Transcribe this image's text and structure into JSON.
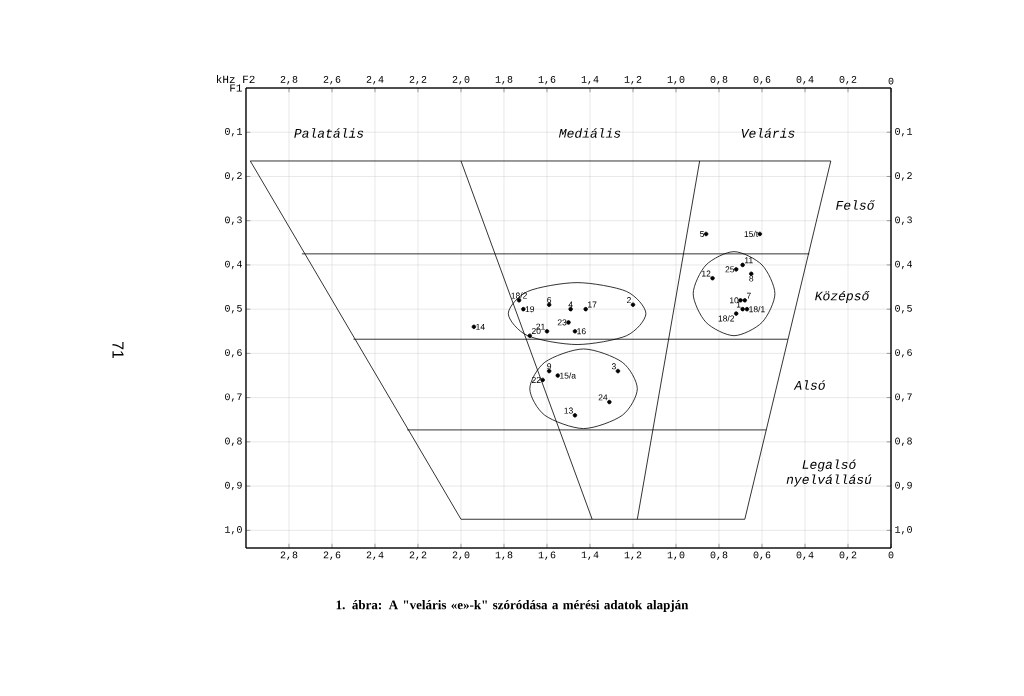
{
  "chart_data": {
    "type": "scatter",
    "xlabel": "kHz F2",
    "ylabel": "F1",
    "xlim": [
      3.0,
      0
    ],
    "ylim": [
      1.04,
      0
    ],
    "x2lim": [
      3.0,
      0
    ],
    "y2lim": [
      1.04,
      0
    ],
    "xticks": [
      {
        "value": 2.8,
        "label": "2,8"
      },
      {
        "value": 2.6,
        "label": "2,6"
      },
      {
        "value": 2.4,
        "label": "2,4"
      },
      {
        "value": 2.2,
        "label": "2,2"
      },
      {
        "value": 2.0,
        "label": "2,0"
      },
      {
        "value": 1.8,
        "label": "1,8"
      },
      {
        "value": 1.6,
        "label": "1,6"
      },
      {
        "value": 1.4,
        "label": "1,4"
      },
      {
        "value": 1.2,
        "label": "1,2"
      },
      {
        "value": 1.0,
        "label": "1,0"
      },
      {
        "value": 0.8,
        "label": "0,8"
      },
      {
        "value": 0.6,
        "label": "0,6"
      },
      {
        "value": 0.4,
        "label": "0,4"
      },
      {
        "value": 0.2,
        "label": "0,2"
      },
      0
    ],
    "x2ticks": [
      {
        "value": 2.8,
        "label": "2,8"
      },
      {
        "value": 2.6,
        "label": "2,6"
      },
      {
        "value": 2.4,
        "label": "2,4"
      },
      {
        "value": 2.2,
        "label": "2,2"
      },
      {
        "value": 2.0,
        "label": "2,0"
      },
      {
        "value": 1.8,
        "label": "1,8"
      },
      {
        "value": 1.6,
        "label": "1,6"
      },
      {
        "value": 1.4,
        "label": "1,4"
      },
      {
        "value": 1.2,
        "label": "1,2"
      },
      {
        "value": 1.0,
        "label": "1,0"
      },
      {
        "value": 0.8,
        "label": "0,8"
      },
      {
        "value": 0.6,
        "label": "0,6"
      },
      {
        "value": 0.4,
        "label": "0,4"
      },
      {
        "value": 0.2,
        "label": "0,2"
      },
      0
    ],
    "yticks": [
      {
        "value": 0.1,
        "label": "0,1"
      },
      {
        "value": 0.2,
        "label": "0,2"
      },
      {
        "value": 0.3,
        "label": "0,3"
      },
      {
        "value": 0.4,
        "label": "0,4"
      },
      {
        "value": 0.5,
        "label": "0,5"
      },
      {
        "value": 0.6,
        "label": "0,6"
      },
      {
        "value": 0.7,
        "label": "0,7"
      },
      {
        "value": 0.8,
        "label": "0,8"
      },
      {
        "value": 0.9,
        "label": "0,9"
      },
      {
        "value": 1.0,
        "label": "1,0"
      }
    ],
    "y2ticks": [
      {
        "value": 0.1,
        "label": "0,1"
      },
      {
        "value": 0.2,
        "label": "0,2"
      },
      {
        "value": 0.3,
        "label": "0,3"
      },
      {
        "value": 0.4,
        "label": "0,4"
      },
      {
        "value": 0.5,
        "label": "0,5"
      },
      {
        "value": 0.6,
        "label": "0,6"
      },
      {
        "value": 0.7,
        "label": "0,7"
      },
      {
        "value": 0.8,
        "label": "0,8"
      },
      {
        "value": 0.9,
        "label": "0,9"
      },
      {
        "value": 1.0,
        "label": "1,0"
      }
    ],
    "grid": true,
    "series": [
      {
        "marker": "circle",
        "color": "#000000",
        "x": [
          1.73,
          1.71,
          1.59,
          1.49,
          1.42,
          1.2,
          1.94,
          1.6,
          1.5,
          1.47,
          1.68,
          1.59,
          1.55,
          1.62,
          1.27,
          1.31,
          1.47,
          0.86,
          0.61,
          0.83,
          0.72,
          0.69,
          0.65,
          0.7,
          0.68,
          0.69,
          0.67,
          0.72
        ],
        "values": [
          0.48,
          0.5,
          0.49,
          0.5,
          0.5,
          0.49,
          0.54,
          0.55,
          0.53,
          0.55,
          0.56,
          0.64,
          0.65,
          0.66,
          0.64,
          0.71,
          0.74,
          0.33,
          0.33,
          0.43,
          0.41,
          0.4,
          0.42,
          0.48,
          0.48,
          0.5,
          0.5,
          0.51
        ]
      },
      {
        "type": "line",
        "marker": "none",
        "color": "#000000",
        "x": [
          2.98,
          0.28
        ],
        "values": [
          0.165,
          0.165
        ]
      },
      {
        "type": "line",
        "marker": "none",
        "color": "#000000",
        "x": [
          2.98,
          2.0
        ],
        "values": [
          0.165,
          0.975
        ]
      },
      {
        "type": "line",
        "marker": "none",
        "color": "#000000",
        "x": [
          2.0,
          0.68
        ],
        "values": [
          0.975,
          0.975
        ]
      },
      {
        "type": "line",
        "marker": "none",
        "color": "#000000",
        "x": [
          0.68,
          0.28
        ],
        "values": [
          0.975,
          0.165
        ]
      },
      {
        "type": "line",
        "marker": "none",
        "color": "#000000",
        "x": [
          2.0,
          1.39
        ],
        "values": [
          0.165,
          0.975
        ]
      },
      {
        "type": "line",
        "marker": "none",
        "color": "#000000",
        "x": [
          1.18,
          0.89
        ],
        "values": [
          0.975,
          0.165
        ]
      },
      {
        "type": "line",
        "marker": "none",
        "color": "#000000",
        "x": [
          2.74,
          0.38
        ],
        "values": [
          0.375,
          0.375
        ]
      },
      {
        "type": "line",
        "marker": "none",
        "color": "#000000",
        "x": [
          2.5,
          0.48
        ],
        "values": [
          0.568,
          0.568
        ]
      },
      {
        "type": "line",
        "marker": "none",
        "color": "#000000",
        "x": [
          2.25,
          0.58
        ],
        "values": [
          0.773,
          0.773
        ]
      }
    ],
    "annotations": [
      {
        "text": "18/2",
        "x": 1.73,
        "y": 0.48
      },
      {
        "text": "19",
        "x": 1.71,
        "y": 0.5
      },
      {
        "text": "6",
        "x": 1.59,
        "y": 0.49
      },
      {
        "text": "4",
        "x": 1.49,
        "y": 0.5
      },
      {
        "text": "17",
        "x": 1.42,
        "y": 0.5
      },
      {
        "text": "2",
        "x": 1.2,
        "y": 0.49
      },
      {
        "text": "14",
        "x": 1.94,
        "y": 0.54
      },
      {
        "text": "21",
        "x": 1.6,
        "y": 0.55
      },
      {
        "text": "23",
        "x": 1.5,
        "y": 0.53
      },
      {
        "text": "16",
        "x": 1.47,
        "y": 0.55
      },
      {
        "text": "20",
        "x": 1.68,
        "y": 0.56
      },
      {
        "text": "9",
        "x": 1.59,
        "y": 0.64
      },
      {
        "text": "15/a",
        "x": 1.55,
        "y": 0.65
      },
      {
        "text": "22",
        "x": 1.62,
        "y": 0.66
      },
      {
        "text": "3",
        "x": 1.27,
        "y": 0.64
      },
      {
        "text": "24",
        "x": 1.31,
        "y": 0.71
      },
      {
        "text": "13",
        "x": 1.47,
        "y": 0.74
      },
      {
        "text": "5",
        "x": 0.86,
        "y": 0.33
      },
      {
        "text": "15/t",
        "x": 0.61,
        "y": 0.33
      },
      {
        "text": "12",
        "x": 0.83,
        "y": 0.43
      },
      {
        "text": "25",
        "x": 0.72,
        "y": 0.41
      },
      {
        "text": "11",
        "x": 0.69,
        "y": 0.4
      },
      {
        "text": "8",
        "x": 0.65,
        "y": 0.42
      },
      {
        "text": "10",
        "x": 0.7,
        "y": 0.48
      },
      {
        "text": "7",
        "x": 0.68,
        "y": 0.48
      },
      {
        "text": "1",
        "x": 0.69,
        "y": 0.5
      },
      {
        "text": "18/1",
        "x": 0.67,
        "y": 0.5
      },
      {
        "text": "18/2",
        "x": 0.72,
        "y": 0.51
      },
      "Palatális",
      "Mediális",
      "Veláris",
      "Felső",
      "Középső",
      "Alsó",
      "Legalsó nyelvállású",
      "1. ábra: A \"veláris «e»-k\" szóródása a mérési adatok alapján",
      "71"
    ]
  }
}
